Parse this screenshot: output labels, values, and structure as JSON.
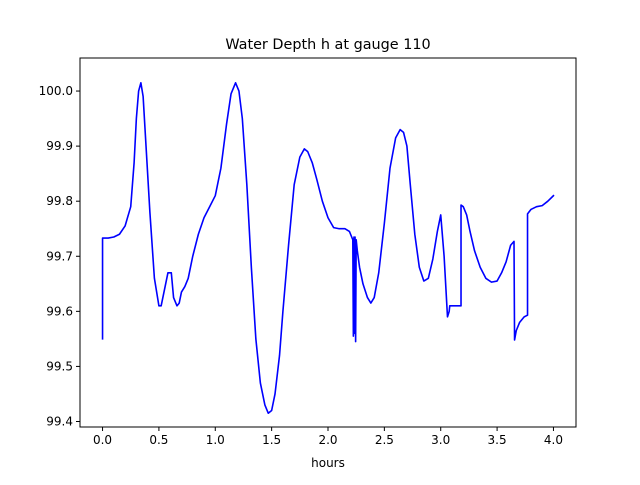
{
  "chart_data": {
    "type": "line",
    "title": "Water Depth h at gauge 110",
    "xlabel": "hours",
    "ylabel": "",
    "xlim": [
      -0.2,
      4.2
    ],
    "ylim": [
      99.39,
      100.06
    ],
    "grid": false,
    "legend": "none",
    "xticks": [
      0.0,
      0.5,
      1.0,
      1.5,
      2.0,
      2.5,
      3.0,
      3.5,
      4.0
    ],
    "xtick_labels": [
      "0.0",
      "0.5",
      "1.0",
      "1.5",
      "2.0",
      "2.5",
      "3.0",
      "3.5",
      "4.0"
    ],
    "yticks": [
      99.4,
      99.5,
      99.6,
      99.7,
      99.8,
      99.9,
      100.0
    ],
    "ytick_labels": [
      "99.4",
      "99.5",
      "99.6",
      "99.7",
      "99.8",
      "99.9",
      "100.0"
    ],
    "series": [
      {
        "color": "#0000ff",
        "x": [
          0.0,
          0.0,
          0.05,
          0.1,
          0.15,
          0.2,
          0.25,
          0.28,
          0.3,
          0.32,
          0.34,
          0.36,
          0.38,
          0.42,
          0.46,
          0.5,
          0.52,
          0.55,
          0.58,
          0.61,
          0.63,
          0.66,
          0.68,
          0.7,
          0.73,
          0.76,
          0.8,
          0.85,
          0.9,
          0.95,
          1.0,
          1.05,
          1.1,
          1.14,
          1.18,
          1.21,
          1.24,
          1.28,
          1.32,
          1.36,
          1.4,
          1.44,
          1.47,
          1.5,
          1.53,
          1.57,
          1.6,
          1.65,
          1.7,
          1.75,
          1.79,
          1.82,
          1.86,
          1.9,
          1.95,
          2.0,
          2.05,
          2.1,
          2.15,
          2.19,
          2.22,
          2.225,
          2.23,
          2.235,
          2.24,
          2.245,
          2.25,
          2.26,
          2.28,
          2.31,
          2.35,
          2.38,
          2.41,
          2.45,
          2.5,
          2.55,
          2.6,
          2.64,
          2.67,
          2.7,
          2.73,
          2.77,
          2.81,
          2.85,
          2.89,
          2.93,
          2.97,
          3.0,
          3.03,
          3.06,
          3.075,
          3.08,
          3.1,
          3.13,
          3.17,
          3.18,
          3.18,
          3.2,
          3.23,
          3.26,
          3.3,
          3.35,
          3.4,
          3.45,
          3.5,
          3.54,
          3.58,
          3.62,
          3.65,
          3.655,
          3.67,
          3.7,
          3.74,
          3.77,
          3.77,
          3.8,
          3.85,
          3.9,
          3.95,
          4.0
        ],
        "y": [
          99.55,
          99.733,
          99.733,
          99.735,
          99.74,
          99.755,
          99.79,
          99.87,
          99.95,
          100.0,
          100.015,
          99.99,
          99.92,
          99.78,
          99.66,
          99.61,
          99.61,
          99.64,
          99.67,
          99.67,
          99.625,
          99.61,
          99.615,
          99.635,
          99.645,
          99.66,
          99.7,
          99.74,
          99.77,
          99.79,
          99.81,
          99.86,
          99.94,
          99.995,
          100.015,
          100.0,
          99.95,
          99.83,
          99.68,
          99.55,
          99.47,
          99.43,
          99.415,
          99.42,
          99.45,
          99.52,
          99.6,
          99.72,
          99.83,
          99.88,
          99.895,
          99.89,
          99.87,
          99.84,
          99.8,
          99.77,
          99.752,
          99.75,
          99.75,
          99.745,
          99.73,
          99.555,
          99.735,
          99.56,
          99.735,
          99.545,
          99.73,
          99.71,
          99.68,
          99.65,
          99.625,
          99.615,
          99.625,
          99.67,
          99.76,
          99.86,
          99.915,
          99.93,
          99.925,
          99.9,
          99.83,
          99.74,
          99.68,
          99.655,
          99.66,
          99.695,
          99.745,
          99.775,
          99.7,
          99.59,
          99.6,
          99.61,
          99.61,
          99.61,
          99.61,
          99.61,
          99.793,
          99.79,
          99.775,
          99.745,
          99.71,
          99.68,
          99.66,
          99.653,
          99.655,
          99.67,
          99.69,
          99.72,
          99.727,
          99.548,
          99.565,
          99.58,
          99.59,
          99.593,
          99.777,
          99.785,
          99.79,
          99.792,
          99.8,
          99.81
        ]
      }
    ]
  }
}
